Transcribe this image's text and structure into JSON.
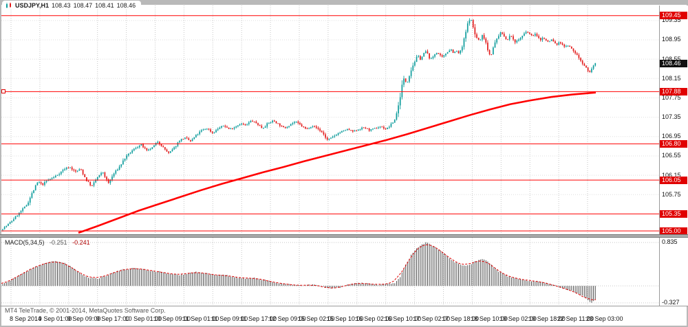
{
  "header": {
    "symbol": "USDJPY,H1",
    "open": "108.43",
    "high": "108.47",
    "low": "108.41",
    "close": "108.46"
  },
  "macd_header": {
    "name": "MACD(5,34,5)",
    "main_value": "-0.251",
    "signal_value": "-0.241"
  },
  "footer": {
    "watermark": "MT4 TeleTrade, © 2001-2014, MetaQuotes Software Corp."
  },
  "chart_data": {
    "type": "candlestick",
    "title": "USDJPY hourly chart with MACD(5,34,5) sub-window",
    "symbol": "USDJPY",
    "timeframe": "H1",
    "current_bar": {
      "open": 108.43,
      "high": 108.47,
      "low": 108.41,
      "close": 108.46
    },
    "price_axis": {
      "min": 104.93,
      "max": 109.66,
      "tick_labels": [
        "109.35",
        "108.95",
        "108.55",
        "108.15",
        "107.75",
        "107.35",
        "106.95",
        "106.55",
        "106.15",
        "105.75"
      ]
    },
    "bid": {
      "text": "108.46",
      "value": 108.46
    },
    "red_levels": [
      {
        "text": "109.45",
        "value": 109.45
      },
      {
        "text": "107.88",
        "value": 107.88
      },
      {
        "text": "106.80",
        "value": 106.8
      },
      {
        "text": "106.05",
        "value": 106.05
      },
      {
        "text": "105.35",
        "value": 105.35
      },
      {
        "text": "105.00",
        "value": 105.0
      }
    ],
    "time_labels": [
      "8 Sep 2014",
      "9 Sep 01:00",
      "9 Sep 09:00",
      "9 Sep 17:00",
      "10 Sep 01:00",
      "10 Sep 09:00",
      "11 Sep 01:00",
      "11 Sep 09:00",
      "11 Sep 17:00",
      "12 Sep 09:00",
      "15 Sep 02:00",
      "15 Sep 10:00",
      "16 Sep 02:00",
      "16 Sep 10:00",
      "17 Sep 02:00",
      "17 Sep 18:00",
      "18 Sep 10:00",
      "19 Sep 02:00",
      "19 Sep 18:00",
      "22 Sep 11:00",
      "23 Sep 03:00"
    ],
    "price_path": [
      [
        0,
        105.02
      ],
      [
        8,
        105.08
      ],
      [
        16,
        105.18
      ],
      [
        24,
        105.3
      ],
      [
        32,
        105.42
      ],
      [
        40,
        105.55
      ],
      [
        48,
        105.8
      ],
      [
        56,
        106.02
      ],
      [
        62,
        105.95
      ],
      [
        70,
        106.05
      ],
      [
        78,
        106.1
      ],
      [
        86,
        106.18
      ],
      [
        94,
        106.28
      ],
      [
        102,
        106.32
      ],
      [
        110,
        106.22
      ],
      [
        118,
        106.28
      ],
      [
        126,
        106.05
      ],
      [
        134,
        105.92
      ],
      [
        142,
        106.1
      ],
      [
        150,
        106.22
      ],
      [
        158,
        105.98
      ],
      [
        166,
        106.18
      ],
      [
        174,
        106.32
      ],
      [
        182,
        106.5
      ],
      [
        190,
        106.62
      ],
      [
        198,
        106.72
      ],
      [
        206,
        106.78
      ],
      [
        214,
        106.65
      ],
      [
        222,
        106.72
      ],
      [
        230,
        106.85
      ],
      [
        238,
        106.72
      ],
      [
        246,
        106.6
      ],
      [
        254,
        106.72
      ],
      [
        262,
        106.88
      ],
      [
        270,
        106.92
      ],
      [
        278,
        106.85
      ],
      [
        286,
        106.98
      ],
      [
        294,
        107.08
      ],
      [
        302,
        107.12
      ],
      [
        310,
        107.02
      ],
      [
        318,
        107.12
      ],
      [
        326,
        107.18
      ],
      [
        334,
        107.1
      ],
      [
        342,
        107.15
      ],
      [
        350,
        107.22
      ],
      [
        358,
        107.18
      ],
      [
        366,
        107.28
      ],
      [
        374,
        107.22
      ],
      [
        382,
        107.12
      ],
      [
        390,
        107.22
      ],
      [
        398,
        107.28
      ],
      [
        406,
        107.2
      ],
      [
        414,
        107.12
      ],
      [
        422,
        107.2
      ],
      [
        430,
        107.26
      ],
      [
        438,
        107.18
      ],
      [
        446,
        107.1
      ],
      [
        454,
        107.18
      ],
      [
        462,
        107.12
      ],
      [
        470,
        107.02
      ],
      [
        476,
        106.88
      ],
      [
        482,
        106.92
      ],
      [
        490,
        107.0
      ],
      [
        498,
        107.06
      ],
      [
        506,
        107.1
      ],
      [
        514,
        107.05
      ],
      [
        522,
        107.1
      ],
      [
        530,
        107.14
      ],
      [
        538,
        107.08
      ],
      [
        546,
        107.12
      ],
      [
        554,
        107.16
      ],
      [
        562,
        107.1
      ],
      [
        568,
        107.18
      ],
      [
        574,
        107.28
      ],
      [
        580,
        107.6
      ],
      [
        584,
        107.95
      ],
      [
        588,
        108.15
      ],
      [
        592,
        108.05
      ],
      [
        596,
        108.25
      ],
      [
        600,
        108.4
      ],
      [
        604,
        108.52
      ],
      [
        608,
        108.62
      ],
      [
        612,
        108.55
      ],
      [
        616,
        108.65
      ],
      [
        620,
        108.72
      ],
      [
        624,
        108.6
      ],
      [
        628,
        108.55
      ],
      [
        632,
        108.65
      ],
      [
        636,
        108.7
      ],
      [
        640,
        108.62
      ],
      [
        644,
        108.58
      ],
      [
        648,
        108.66
      ],
      [
        652,
        108.72
      ],
      [
        656,
        108.76
      ],
      [
        660,
        108.68
      ],
      [
        664,
        108.72
      ],
      [
        668,
        108.66
      ],
      [
        672,
        108.78
      ],
      [
        676,
        109.0
      ],
      [
        680,
        109.25
      ],
      [
        684,
        109.42
      ],
      [
        687,
        109.3
      ],
      [
        690,
        109.1
      ],
      [
        694,
        108.98
      ],
      [
        698,
        108.92
      ],
      [
        702,
        109.05
      ],
      [
        706,
        108.95
      ],
      [
        710,
        108.72
      ],
      [
        714,
        108.62
      ],
      [
        718,
        108.8
      ],
      [
        722,
        108.95
      ],
      [
        726,
        109.06
      ],
      [
        730,
        109.1
      ],
      [
        734,
        109.0
      ],
      [
        738,
        108.95
      ],
      [
        742,
        109.04
      ],
      [
        746,
        108.98
      ],
      [
        750,
        108.9
      ],
      [
        754,
        108.95
      ],
      [
        758,
        109.0
      ],
      [
        762,
        109.06
      ],
      [
        766,
        109.12
      ],
      [
        770,
        109.08
      ],
      [
        774,
        109.02
      ],
      [
        778,
        109.08
      ],
      [
        782,
        109.0
      ],
      [
        786,
        108.95
      ],
      [
        790,
        109.0
      ],
      [
        794,
        108.94
      ],
      [
        798,
        108.9
      ],
      [
        802,
        108.96
      ],
      [
        806,
        108.9
      ],
      [
        810,
        108.85
      ],
      [
        814,
        108.9
      ],
      [
        818,
        108.86
      ],
      [
        822,
        108.8
      ],
      [
        826,
        108.84
      ],
      [
        830,
        108.78
      ],
      [
        834,
        108.72
      ],
      [
        838,
        108.66
      ],
      [
        842,
        108.58
      ],
      [
        846,
        108.5
      ],
      [
        850,
        108.42
      ],
      [
        854,
        108.34
      ],
      [
        858,
        108.28
      ],
      [
        861,
        108.35
      ],
      [
        864,
        108.46
      ]
    ],
    "ma_path": [
      [
        112,
        104.96
      ],
      [
        140,
        105.1
      ],
      [
        170,
        105.26
      ],
      [
        200,
        105.42
      ],
      [
        230,
        105.56
      ],
      [
        260,
        105.7
      ],
      [
        290,
        105.84
      ],
      [
        320,
        105.97
      ],
      [
        350,
        106.09
      ],
      [
        380,
        106.21
      ],
      [
        410,
        106.32
      ],
      [
        440,
        106.44
      ],
      [
        470,
        106.55
      ],
      [
        500,
        106.66
      ],
      [
        530,
        106.77
      ],
      [
        560,
        106.88
      ],
      [
        590,
        107.0
      ],
      [
        620,
        107.13
      ],
      [
        650,
        107.26
      ],
      [
        680,
        107.39
      ],
      [
        710,
        107.51
      ],
      [
        740,
        107.62
      ],
      [
        770,
        107.7
      ],
      [
        800,
        107.77
      ],
      [
        830,
        107.82
      ],
      [
        864,
        107.86
      ]
    ],
    "macd": {
      "max_label": {
        "text": "0.835",
        "value": 0.835
      },
      "min_label": {
        "text": "-0.327",
        "value": -0.327
      },
      "main_current": -0.251,
      "signal_current": -0.241,
      "path": [
        [
          0,
          0.03
        ],
        [
          16,
          0.12
        ],
        [
          32,
          0.25
        ],
        [
          48,
          0.36
        ],
        [
          64,
          0.44
        ],
        [
          80,
          0.48
        ],
        [
          92,
          0.44
        ],
        [
          104,
          0.34
        ],
        [
          116,
          0.22
        ],
        [
          128,
          0.16
        ],
        [
          140,
          0.14
        ],
        [
          152,
          0.2
        ],
        [
          164,
          0.26
        ],
        [
          176,
          0.31
        ],
        [
          190,
          0.34
        ],
        [
          204,
          0.33
        ],
        [
          218,
          0.29
        ],
        [
          232,
          0.27
        ],
        [
          246,
          0.23
        ],
        [
          258,
          0.21
        ],
        [
          270,
          0.24
        ],
        [
          284,
          0.27
        ],
        [
          298,
          0.24
        ],
        [
          312,
          0.2
        ],
        [
          326,
          0.21
        ],
        [
          340,
          0.17
        ],
        [
          354,
          0.14
        ],
        [
          368,
          0.16
        ],
        [
          382,
          0.11
        ],
        [
          396,
          0.07
        ],
        [
          410,
          0.04
        ],
        [
          424,
          0.02
        ],
        [
          438,
          0.0
        ],
        [
          452,
          0.03
        ],
        [
          466,
          -0.01
        ],
        [
          478,
          -0.06
        ],
        [
          492,
          -0.03
        ],
        [
          506,
          0.03
        ],
        [
          520,
          0.06
        ],
        [
          534,
          0.04
        ],
        [
          548,
          0.02
        ],
        [
          562,
          0.04
        ],
        [
          572,
          0.06
        ],
        [
          580,
          0.18
        ],
        [
          588,
          0.42
        ],
        [
          596,
          0.6
        ],
        [
          604,
          0.72
        ],
        [
          612,
          0.81
        ],
        [
          618,
          0.835
        ],
        [
          626,
          0.79
        ],
        [
          634,
          0.72
        ],
        [
          642,
          0.64
        ],
        [
          650,
          0.55
        ],
        [
          658,
          0.47
        ],
        [
          666,
          0.41
        ],
        [
          674,
          0.38
        ],
        [
          682,
          0.42
        ],
        [
          690,
          0.48
        ],
        [
          698,
          0.52
        ],
        [
          706,
          0.48
        ],
        [
          714,
          0.38
        ],
        [
          722,
          0.28
        ],
        [
          730,
          0.22
        ],
        [
          738,
          0.18
        ],
        [
          746,
          0.15
        ],
        [
          754,
          0.13
        ],
        [
          762,
          0.11
        ],
        [
          770,
          0.1
        ],
        [
          778,
          0.09
        ],
        [
          786,
          0.07
        ],
        [
          794,
          0.05
        ],
        [
          802,
          0.02
        ],
        [
          810,
          -0.02
        ],
        [
          818,
          -0.05
        ],
        [
          826,
          -0.08
        ],
        [
          834,
          -0.12
        ],
        [
          842,
          -0.17
        ],
        [
          848,
          -0.22
        ],
        [
          854,
          -0.29
        ],
        [
          858,
          -0.327
        ],
        [
          861,
          -0.29
        ],
        [
          864,
          -0.251
        ]
      ]
    },
    "colors": {
      "bull": "#0d9c9c",
      "bear": "#e21919",
      "level_line": "#ff0000",
      "ma_line": "#ff0000",
      "macd_bar": "#4d4d4d",
      "macd_signal": "#dd0000",
      "badge_red": "#e00000",
      "badge_black": "#111111",
      "grid": "#c6c6c6"
    }
  }
}
